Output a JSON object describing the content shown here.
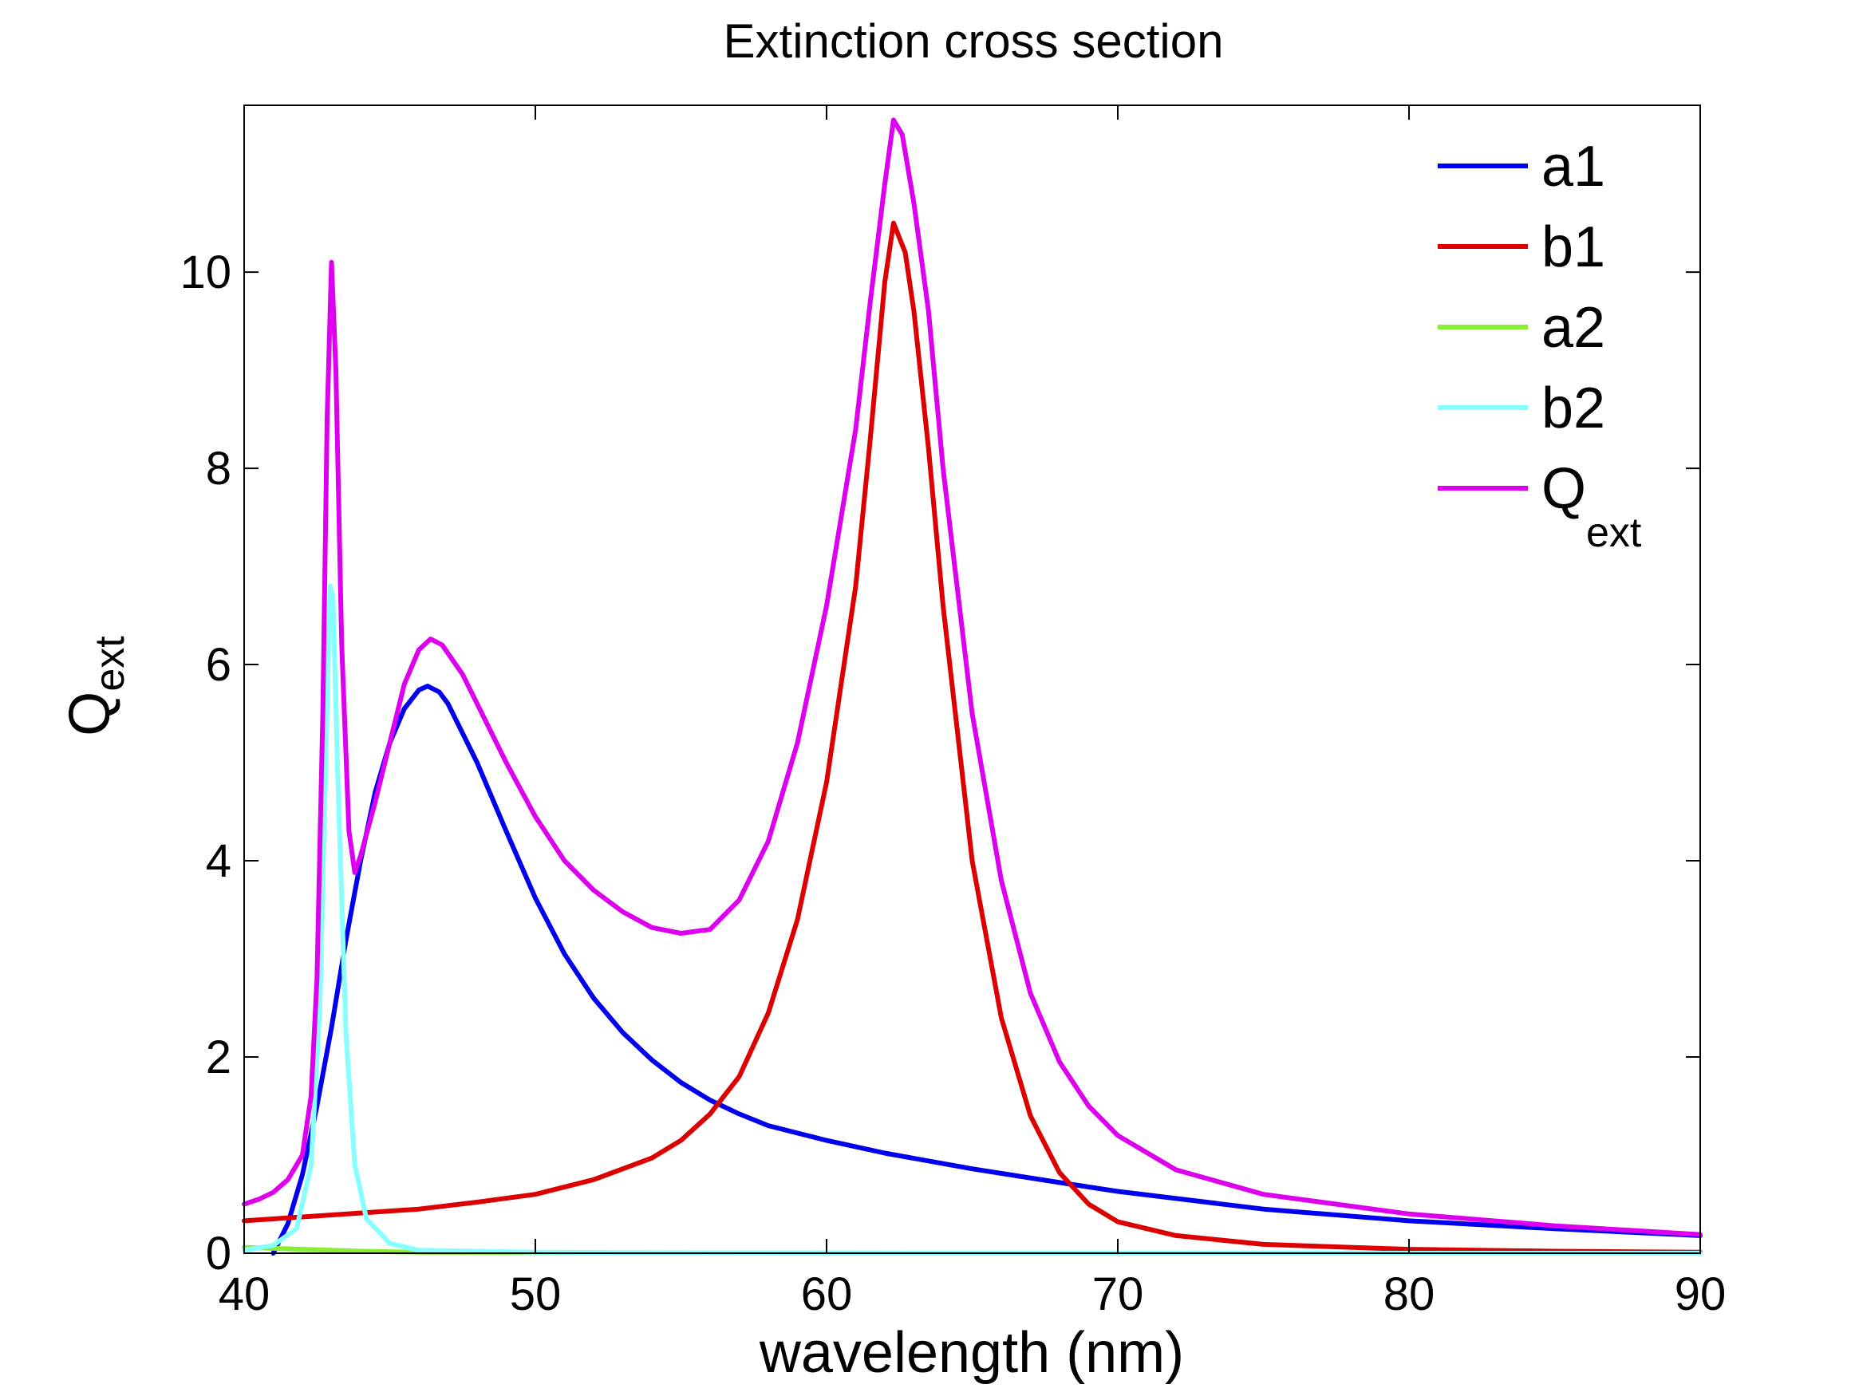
{
  "chart_data": {
    "type": "line",
    "title": "Extinction cross section",
    "xlabel": "wavelength (nm)",
    "ylabel": {
      "main": "Q",
      "sub": "ext"
    },
    "xlim": [
      40,
      90
    ],
    "ylim": [
      0,
      11.7
    ],
    "xticks": [
      40,
      50,
      60,
      70,
      80,
      90
    ],
    "yticks": [
      0,
      2,
      4,
      6,
      8,
      10
    ],
    "grid": false,
    "legend_position": "top-right",
    "series": [
      {
        "name": "a1",
        "color": "#0000ee",
        "points": [
          [
            41,
            0
          ],
          [
            41.5,
            0.3
          ],
          [
            42,
            0.8
          ],
          [
            42.5,
            1.5
          ],
          [
            43,
            2.3
          ],
          [
            43.5,
            3.2
          ],
          [
            44,
            4.0
          ],
          [
            44.5,
            4.7
          ],
          [
            45,
            5.2
          ],
          [
            45.5,
            5.55
          ],
          [
            46,
            5.74
          ],
          [
            46.3,
            5.78
          ],
          [
            46.7,
            5.72
          ],
          [
            47,
            5.6
          ],
          [
            48,
            5.0
          ],
          [
            49,
            4.3
          ],
          [
            50,
            3.62
          ],
          [
            51,
            3.05
          ],
          [
            52,
            2.6
          ],
          [
            53,
            2.25
          ],
          [
            54,
            1.97
          ],
          [
            55,
            1.74
          ],
          [
            56,
            1.56
          ],
          [
            57,
            1.42
          ],
          [
            58,
            1.3
          ],
          [
            60,
            1.15
          ],
          [
            62,
            1.02
          ],
          [
            65,
            0.86
          ],
          [
            68,
            0.72
          ],
          [
            70,
            0.63
          ],
          [
            75,
            0.45
          ],
          [
            80,
            0.33
          ],
          [
            85,
            0.25
          ],
          [
            90,
            0.18
          ]
        ]
      },
      {
        "name": "b1",
        "color": "#dd0000",
        "points": [
          [
            40,
            0.33
          ],
          [
            42,
            0.37
          ],
          [
            44,
            0.41
          ],
          [
            46,
            0.45
          ],
          [
            48,
            0.52
          ],
          [
            50,
            0.6
          ],
          [
            52,
            0.75
          ],
          [
            54,
            0.97
          ],
          [
            55,
            1.15
          ],
          [
            56,
            1.42
          ],
          [
            57,
            1.8
          ],
          [
            58,
            2.45
          ],
          [
            59,
            3.4
          ],
          [
            60,
            4.8
          ],
          [
            61,
            6.8
          ],
          [
            61.5,
            8.3
          ],
          [
            62,
            9.9
          ],
          [
            62.3,
            10.5
          ],
          [
            62.7,
            10.2
          ],
          [
            63,
            9.6
          ],
          [
            63.5,
            8.2
          ],
          [
            64,
            6.6
          ],
          [
            65,
            4.0
          ],
          [
            66,
            2.4
          ],
          [
            67,
            1.4
          ],
          [
            68,
            0.82
          ],
          [
            69,
            0.5
          ],
          [
            70,
            0.32
          ],
          [
            72,
            0.18
          ],
          [
            75,
            0.09
          ],
          [
            80,
            0.04
          ],
          [
            85,
            0.02
          ],
          [
            90,
            0.01
          ]
        ]
      },
      {
        "name": "a2",
        "color": "#88ee33",
        "points": [
          [
            40,
            0.06
          ],
          [
            42,
            0.04
          ],
          [
            44,
            0.02
          ],
          [
            46,
            0.01
          ],
          [
            50,
            0.005
          ],
          [
            60,
            0.002
          ],
          [
            70,
            0.001
          ],
          [
            90,
            0
          ]
        ]
      },
      {
        "name": "b2",
        "color": "#88ffff",
        "points": [
          [
            40,
            0.03
          ],
          [
            41,
            0.08
          ],
          [
            41.8,
            0.25
          ],
          [
            42.3,
            0.9
          ],
          [
            42.6,
            2.5
          ],
          [
            42.8,
            5.0
          ],
          [
            42.95,
            6.8
          ],
          [
            43.05,
            6.7
          ],
          [
            43.2,
            5.0
          ],
          [
            43.5,
            2.2
          ],
          [
            43.8,
            0.9
          ],
          [
            44.2,
            0.35
          ],
          [
            45,
            0.1
          ],
          [
            46,
            0.03
          ],
          [
            50,
            0.01
          ],
          [
            60,
            0
          ],
          [
            90,
            0
          ]
        ]
      },
      {
        "name": "Q_ext",
        "color": "#dd00ee",
        "points": [
          [
            40,
            0.5
          ],
          [
            40.5,
            0.55
          ],
          [
            41,
            0.62
          ],
          [
            41.5,
            0.75
          ],
          [
            42,
            1.0
          ],
          [
            42.3,
            1.6
          ],
          [
            42.5,
            2.8
          ],
          [
            42.7,
            5.5
          ],
          [
            42.85,
            8.5
          ],
          [
            43,
            10.1
          ],
          [
            43.15,
            9.0
          ],
          [
            43.35,
            6.2
          ],
          [
            43.6,
            4.3
          ],
          [
            43.8,
            3.88
          ],
          [
            44,
            4.05
          ],
          [
            44.5,
            4.6
          ],
          [
            45,
            5.2
          ],
          [
            45.5,
            5.8
          ],
          [
            46,
            6.15
          ],
          [
            46.4,
            6.26
          ],
          [
            46.8,
            6.2
          ],
          [
            47.5,
            5.9
          ],
          [
            48,
            5.6
          ],
          [
            49,
            5.0
          ],
          [
            50,
            4.45
          ],
          [
            51,
            4.0
          ],
          [
            52,
            3.7
          ],
          [
            53,
            3.48
          ],
          [
            54,
            3.32
          ],
          [
            55,
            3.26
          ],
          [
            56,
            3.3
          ],
          [
            57,
            3.6
          ],
          [
            58,
            4.2
          ],
          [
            59,
            5.2
          ],
          [
            60,
            6.6
          ],
          [
            61,
            8.4
          ],
          [
            61.5,
            9.7
          ],
          [
            62,
            10.9
          ],
          [
            62.3,
            11.55
          ],
          [
            62.6,
            11.4
          ],
          [
            63,
            10.7
          ],
          [
            63.5,
            9.6
          ],
          [
            64,
            8.0
          ],
          [
            65,
            5.5
          ],
          [
            66,
            3.8
          ],
          [
            67,
            2.65
          ],
          [
            68,
            1.95
          ],
          [
            69,
            1.5
          ],
          [
            70,
            1.2
          ],
          [
            72,
            0.85
          ],
          [
            75,
            0.6
          ],
          [
            80,
            0.4
          ],
          [
            85,
            0.28
          ],
          [
            90,
            0.19
          ]
        ]
      }
    ],
    "legend": [
      {
        "label": "a1",
        "color": "#0000ee"
      },
      {
        "label": "b1",
        "color": "#dd0000"
      },
      {
        "label": "a2",
        "color": "#88ee33"
      },
      {
        "label": "b2",
        "color": "#88ffff"
      },
      {
        "label": "Q",
        "sub": "ext",
        "color": "#dd00ee"
      }
    ]
  }
}
